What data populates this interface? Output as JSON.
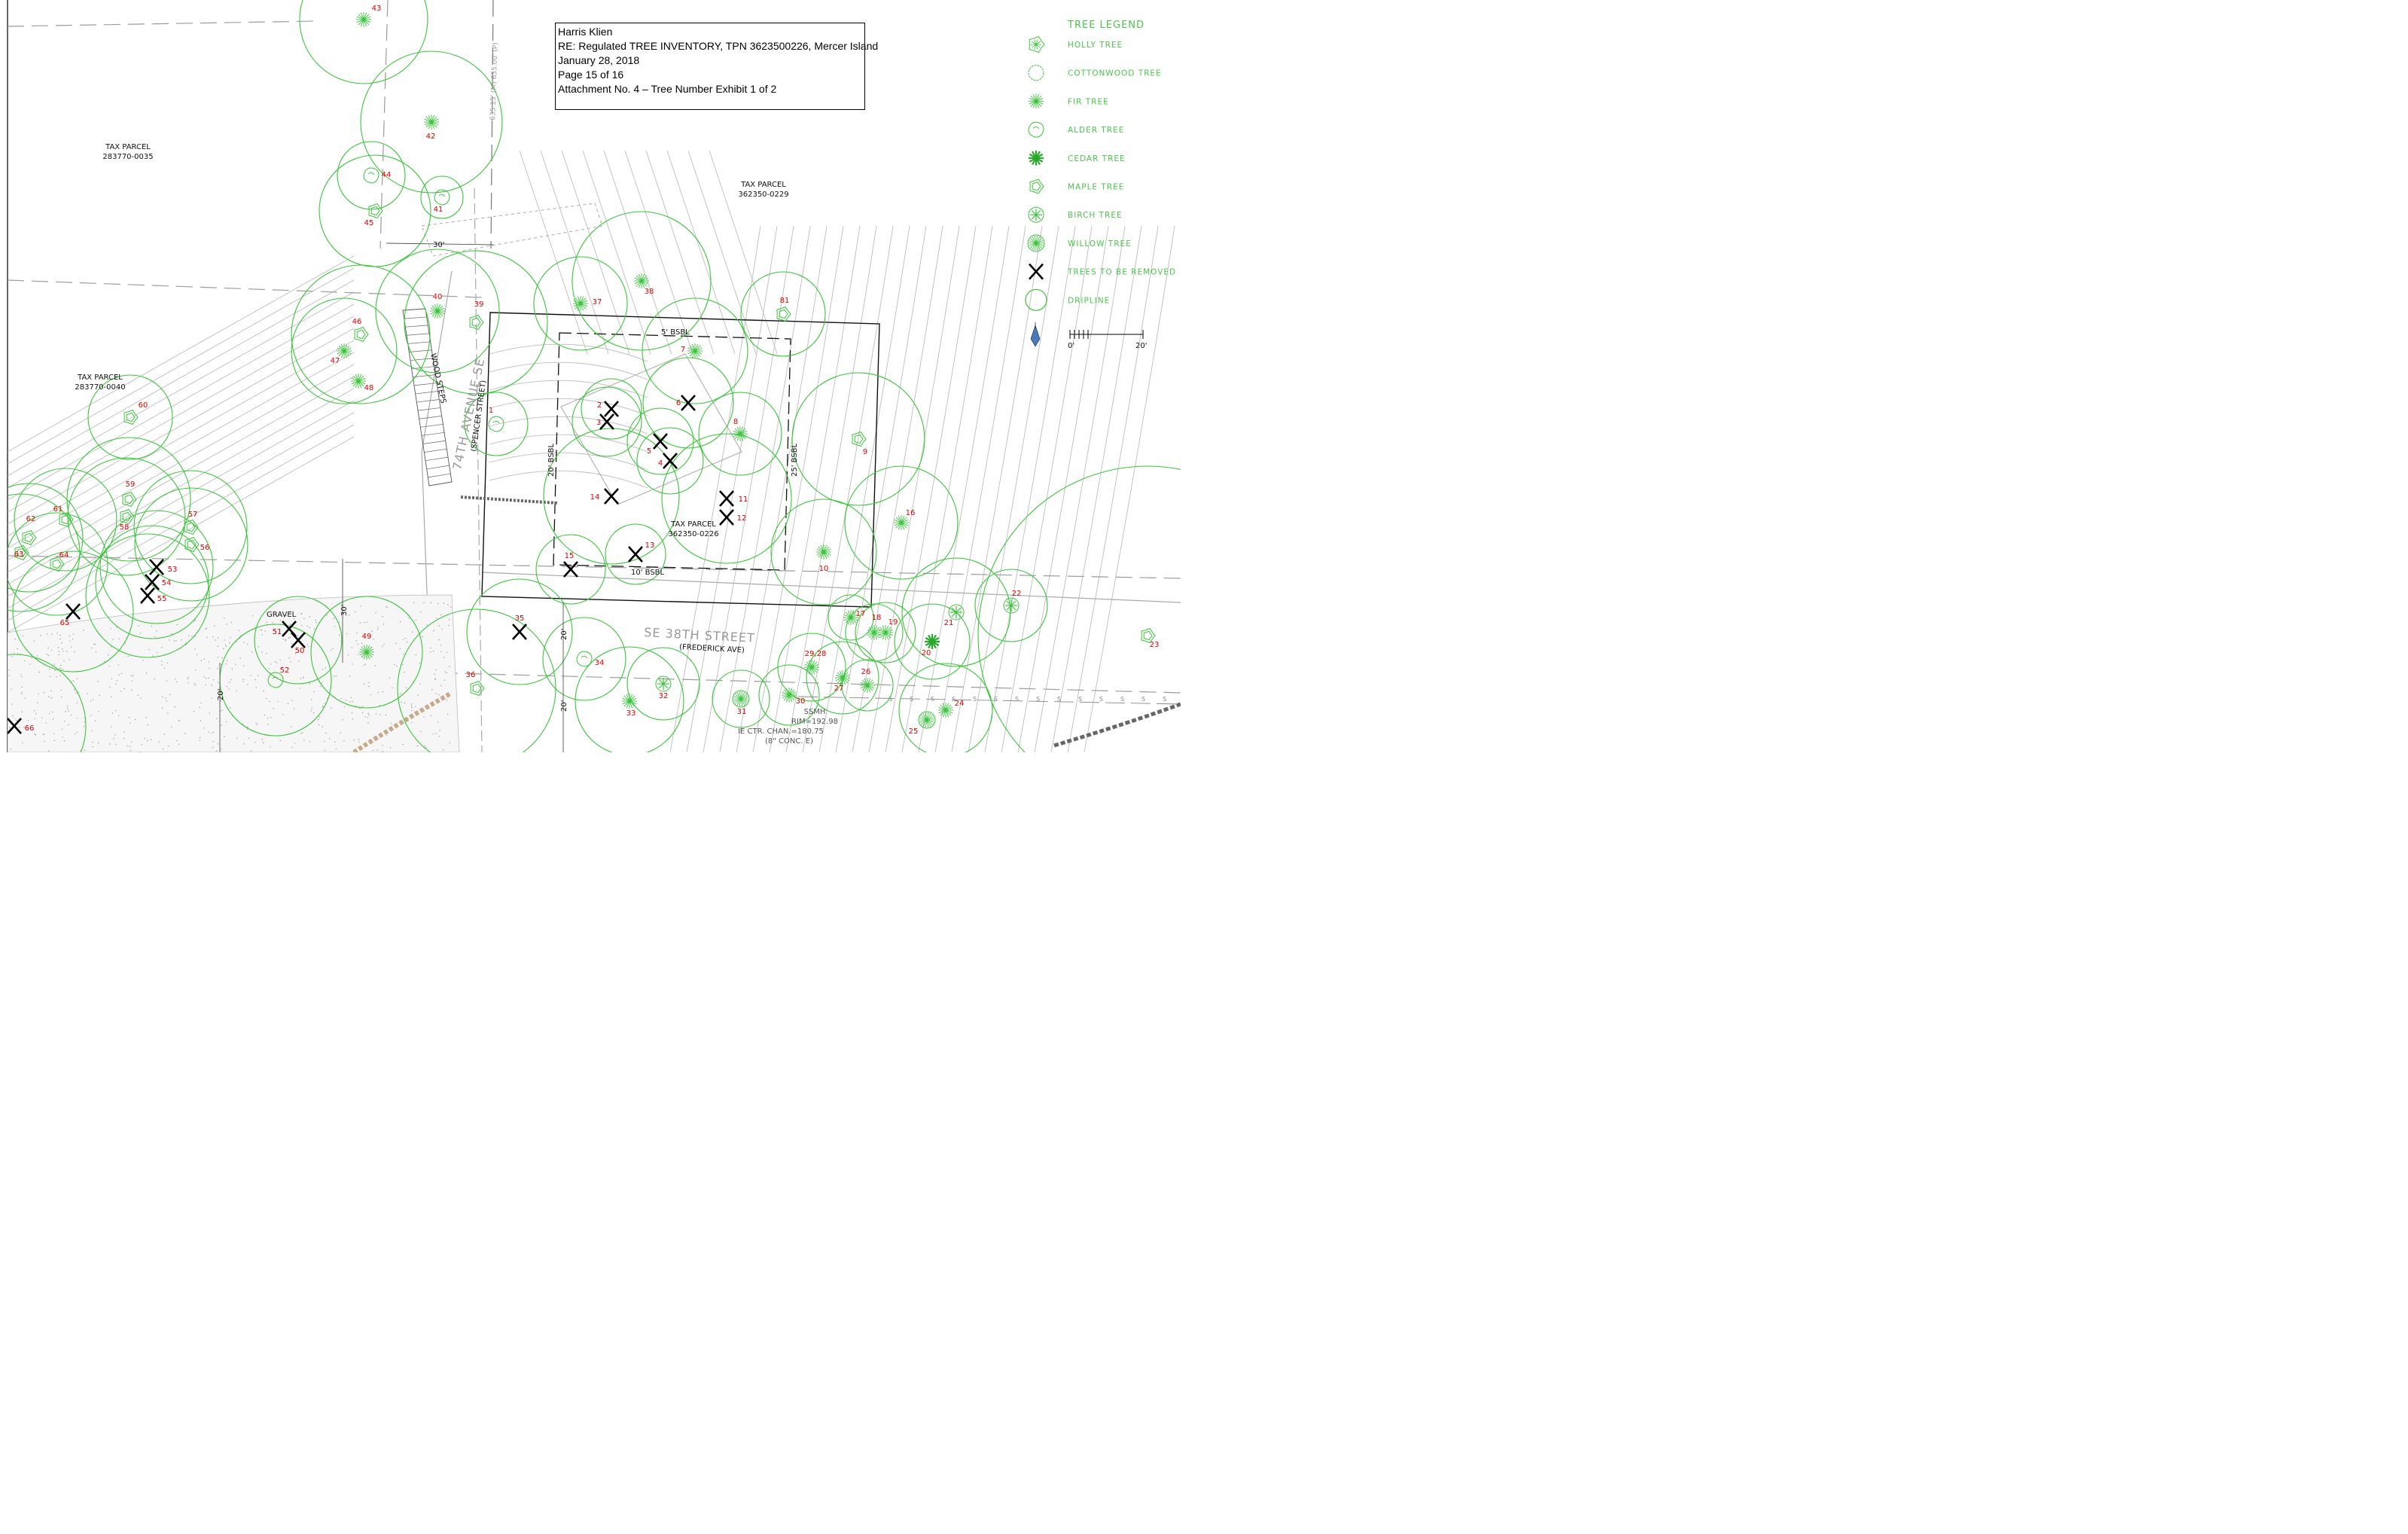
{
  "title_block": {
    "line1": "Harris Klien",
    "line2": "RE: Regulated TREE INVENTORY, TPN 3623500226, Mercer Island",
    "line3": "January 28, 2018",
    "line4": "Page 15 of 16",
    "line5": "Attachment No. 4 – Tree Number Exhibit 1 of 2"
  },
  "legend": {
    "heading": "TREE LEGEND",
    "items": [
      {
        "label": "HOLLY TREE",
        "icon": "holly-tree-icon"
      },
      {
        "label": "COTTONWOOD TREE",
        "icon": "cottonwood-tree-icon"
      },
      {
        "label": "FIR TREE",
        "icon": "fir-tree-icon"
      },
      {
        "label": "ALDER TREE",
        "icon": "alder-tree-icon"
      },
      {
        "label": "CEDAR TREE",
        "icon": "cedar-tree-icon"
      },
      {
        "label": "MAPLE TREE",
        "icon": "maple-tree-icon"
      },
      {
        "label": "BIRCH TREE",
        "icon": "birch-tree-icon"
      },
      {
        "label": "WILLOW TREE",
        "icon": "willow-tree-icon"
      },
      {
        "label": "TREES TO BE REMOVED",
        "icon": "remove-x-icon"
      },
      {
        "label": "DRIPLINE",
        "icon": "dripline-circle-icon"
      }
    ],
    "scale_left": "0'",
    "scale_right": "20'"
  },
  "parcels": {
    "nw_label": "TAX PARCEL",
    "nw_number": "283770-0035",
    "w_label": "TAX PARCEL",
    "w_number": "283770-0040",
    "ne_label": "TAX PARCEL",
    "ne_number": "362350-0229",
    "site_label": "TAX PARCEL",
    "site_number": "362350-0226"
  },
  "streets": {
    "avenue": "74TH AVENUE SE",
    "avenue_alt": "(SPENCER STREET)",
    "street": "SE 38TH STREET",
    "street_alt": "(FREDERICK AVE)"
  },
  "setbacks": {
    "north": "5' BSBL",
    "west": "20' BSBL",
    "east": "25' BSBL",
    "south": "10' BSBL"
  },
  "dimensions": {
    "top": "30'",
    "left": "30'",
    "bl": "20'",
    "b1": "20'",
    "b2": "20'",
    "bearing": "635.15' (M) 635.00' (P)"
  },
  "notes": {
    "wood_steps": "WOOD STEPS",
    "gravel": "GRAVEL",
    "ssmh": "SSMH",
    "rim": "RIM=192.98",
    "ie": "IE CTR. CHAN.=180.75",
    "conc": "(8\" CONC. E)"
  },
  "colors": {
    "tree": "#3cc43c",
    "label": "#e00000",
    "line": "#b4b4b4"
  },
  "trees": [
    {
      "n": "1",
      "type": "alder"
    },
    {
      "n": "2",
      "type": "remove"
    },
    {
      "n": "3",
      "type": "remove"
    },
    {
      "n": "4",
      "type": "remove"
    },
    {
      "n": "5",
      "type": "remove"
    },
    {
      "n": "6",
      "type": "remove"
    },
    {
      "n": "7",
      "type": "fir"
    },
    {
      "n": "8",
      "type": "fir"
    },
    {
      "n": "9",
      "type": "maple"
    },
    {
      "n": "10",
      "type": "fir"
    },
    {
      "n": "11",
      "type": "remove"
    },
    {
      "n": "12",
      "type": "remove"
    },
    {
      "n": "13",
      "type": "remove"
    },
    {
      "n": "14",
      "type": "remove"
    },
    {
      "n": "15",
      "type": "remove"
    },
    {
      "n": "16",
      "type": "fir"
    },
    {
      "n": "17",
      "type": "fir"
    },
    {
      "n": "18",
      "type": "fir"
    },
    {
      "n": "19",
      "type": "fir"
    },
    {
      "n": "20",
      "type": "cedar"
    },
    {
      "n": "21",
      "type": "birch"
    },
    {
      "n": "22",
      "type": "birch"
    },
    {
      "n": "23",
      "type": "maple"
    },
    {
      "n": "24",
      "type": "fir"
    },
    {
      "n": "25",
      "type": "willow"
    },
    {
      "n": "26",
      "type": "fir"
    },
    {
      "n": "27",
      "type": "fir"
    },
    {
      "n": "29,28",
      "type": "fir"
    },
    {
      "n": "30",
      "type": "fir"
    },
    {
      "n": "31",
      "type": "willow"
    },
    {
      "n": "32",
      "type": "birch"
    },
    {
      "n": "33",
      "type": "fir"
    },
    {
      "n": "34",
      "type": "alder"
    },
    {
      "n": "35",
      "type": "remove"
    },
    {
      "n": "36",
      "type": "maple"
    },
    {
      "n": "37",
      "type": "fir"
    },
    {
      "n": "38",
      "type": "fir"
    },
    {
      "n": "39",
      "type": "maple"
    },
    {
      "n": "40",
      "type": "fir"
    },
    {
      "n": "41",
      "type": "alder"
    },
    {
      "n": "42",
      "type": "fir"
    },
    {
      "n": "43",
      "type": "fir"
    },
    {
      "n": "44",
      "type": "alder"
    },
    {
      "n": "45",
      "type": "maple"
    },
    {
      "n": "46",
      "type": "maple"
    },
    {
      "n": "47",
      "type": "fir"
    },
    {
      "n": "48",
      "type": "fir"
    },
    {
      "n": "49",
      "type": "fir"
    },
    {
      "n": "50",
      "type": "remove"
    },
    {
      "n": "51",
      "type": "remove"
    },
    {
      "n": "52",
      "type": "alder"
    },
    {
      "n": "53",
      "type": "remove"
    },
    {
      "n": "54",
      "type": "remove"
    },
    {
      "n": "55",
      "type": "remove"
    },
    {
      "n": "56",
      "type": "maple"
    },
    {
      "n": "57",
      "type": "maple"
    },
    {
      "n": "58",
      "type": "maple"
    },
    {
      "n": "59",
      "type": "maple"
    },
    {
      "n": "60",
      "type": "maple"
    },
    {
      "n": "61",
      "type": "maple"
    },
    {
      "n": "62",
      "type": "maple"
    },
    {
      "n": "63",
      "type": "maple"
    },
    {
      "n": "64",
      "type": "maple"
    },
    {
      "n": "65",
      "type": "remove"
    },
    {
      "n": "66",
      "type": "remove"
    },
    {
      "n": "81",
      "type": "maple"
    }
  ]
}
